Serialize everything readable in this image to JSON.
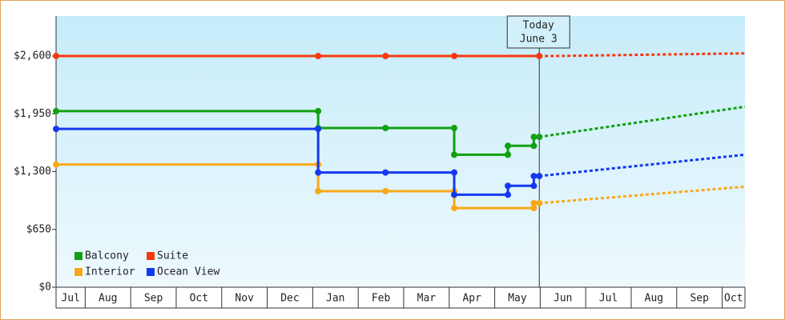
{
  "chart_data": {
    "type": "line",
    "ylim": [
      0,
      3050
    ],
    "yticks": [
      {
        "value": 0,
        "label": "$0"
      },
      {
        "value": 650,
        "label": "$650"
      },
      {
        "value": 1300,
        "label": "$1,300"
      },
      {
        "value": 1950,
        "label": "$1,950"
      },
      {
        "value": 2600,
        "label": "$2,600"
      }
    ],
    "xlim": [
      0.36,
      15.5
    ],
    "xticks": [
      {
        "value": 0.5,
        "label": "Jul"
      },
      {
        "value": 1.5,
        "label": "Aug"
      },
      {
        "value": 2.5,
        "label": "Sep"
      },
      {
        "value": 3.5,
        "label": "Oct"
      },
      {
        "value": 4.5,
        "label": "Nov"
      },
      {
        "value": 5.5,
        "label": "Dec"
      },
      {
        "value": 6.5,
        "label": "Jan"
      },
      {
        "value": 7.5,
        "label": "Feb"
      },
      {
        "value": 8.5,
        "label": "Mar"
      },
      {
        "value": 9.5,
        "label": "Apr"
      },
      {
        "value": 10.5,
        "label": "May"
      },
      {
        "value": 11.5,
        "label": "Jun"
      },
      {
        "value": 12.5,
        "label": "Jul"
      },
      {
        "value": 13.5,
        "label": "Aug"
      },
      {
        "value": 14.5,
        "label": "Sep"
      },
      {
        "value": 15.5,
        "label": "Oct"
      }
    ],
    "annotation": {
      "x": 10.98,
      "lines": [
        "Today",
        "June 3"
      ]
    },
    "series": [
      {
        "name": "Balcony",
        "color": "#11a011",
        "x": [
          0.36,
          6.12,
          6.12,
          7.6,
          9.11,
          9.11,
          10.29,
          10.29,
          10.86,
          10.86,
          10.98
        ],
        "values": [
          1980,
          1980,
          1790,
          1790,
          1790,
          1490,
          1490,
          1590,
          1590,
          1690,
          1690
        ],
        "forecast": {
          "x": [
            10.98,
            15.5
          ],
          "values": [
            1690,
            2030
          ]
        }
      },
      {
        "name": "Suite",
        "color": "#f53a10",
        "x": [
          0.36,
          6.12,
          7.6,
          9.11,
          10.98
        ],
        "values": [
          2600,
          2600,
          2600,
          2600,
          2600
        ],
        "forecast": {
          "x": [
            10.98,
            11.3,
            15.5
          ],
          "values": [
            2600,
            2600,
            2630
          ]
        }
      },
      {
        "name": "Interior",
        "color": "#f8a818",
        "x": [
          0.36,
          6.12,
          6.12,
          7.6,
          9.11,
          9.11,
          10.86,
          10.86,
          10.98
        ],
        "values": [
          1380,
          1380,
          1080,
          1080,
          1080,
          890,
          890,
          945,
          945
        ],
        "forecast": {
          "x": [
            10.98,
            15.5
          ],
          "values": [
            945,
            1130
          ]
        }
      },
      {
        "name": "Ocean View",
        "color": "#1438f0",
        "x": [
          0.36,
          6.12,
          6.12,
          7.6,
          9.11,
          9.11,
          10.29,
          10.29,
          10.86,
          10.86,
          10.98
        ],
        "values": [
          1780,
          1780,
          1290,
          1290,
          1290,
          1040,
          1040,
          1140,
          1140,
          1250,
          1250
        ],
        "forecast": {
          "x": [
            10.98,
            15.5
          ],
          "values": [
            1250,
            1490
          ]
        }
      }
    ]
  }
}
